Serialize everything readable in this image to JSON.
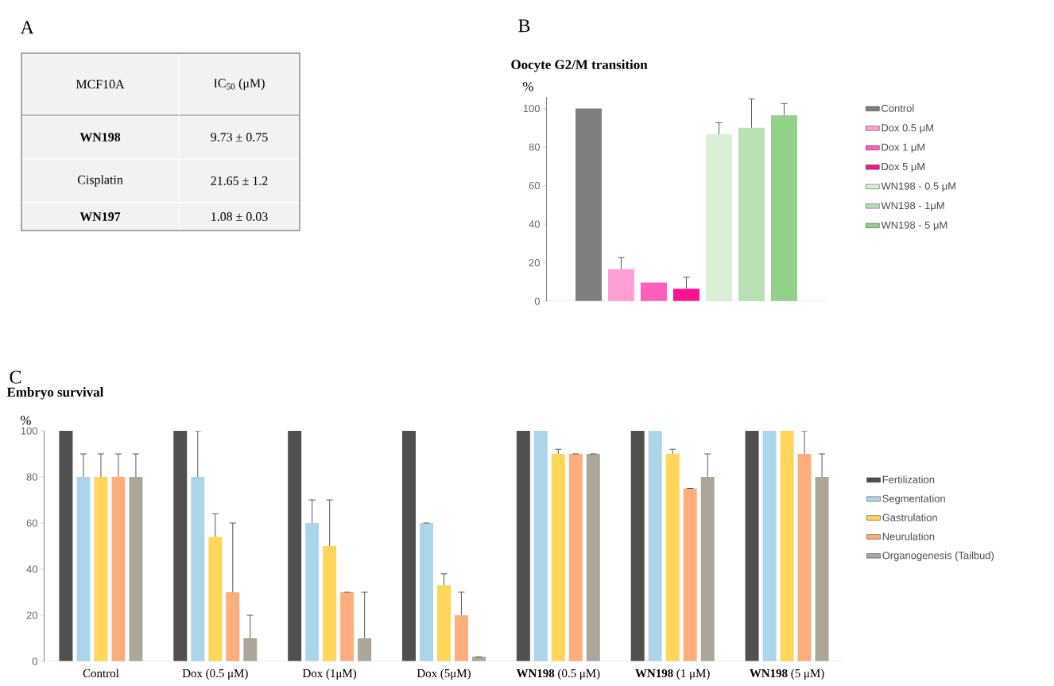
{
  "chart_data": [
    {
      "type": "other",
      "annotations": [
        "A",
        "MCF10A",
        "IC$_{50}$ (μM)",
        "**WN198**",
        "9.73 ± 0.75",
        "Cisplatin",
        "21.65 ± 1.2",
        "**WN197**",
        "1.08 ± 0.03"
      ]
    },
    {
      "type": "bar",
      "title": "Oocyte G2/M transition",
      "ylabel": "%",
      "annotations": [
        "B"
      ],
      "categories": [
        null
      ],
      "series": [
        {
          "name": "Control",
          "color": "#7f7f7f",
          "values": [
            100
          ],
          "errors": [
            null
          ]
        },
        {
          "name": "Dox 0.5 μM",
          "color": "#ff9fd6",
          "values": [
            16.7
          ],
          "errors": [
            6
          ]
        },
        {
          "name": "Dox 1 μM",
          "color": "#ff5ebc",
          "values": [
            9.7
          ],
          "errors": [
            null
          ]
        },
        {
          "name": "Dox 5 μM",
          "color": "#fc1190",
          "values": [
            6.5
          ],
          "errors": [
            6
          ]
        },
        {
          "name": "WN198 - 0.5 μM",
          "color": "#dbefd7",
          "values": [
            86.7
          ],
          "errors": [
            6
          ]
        },
        {
          "name": "WN198 - 1μM",
          "color": "#b9dfb5",
          "values": [
            90
          ],
          "errors": [
            15
          ]
        },
        {
          "name": "WN198 - 5 μM",
          "color": "#93d08a",
          "values": [
            96.5
          ],
          "errors": [
            6
          ]
        }
      ],
      "ylim": [
        0,
        106
      ],
      "yticks": [
        0,
        20,
        40,
        60,
        80,
        100
      ],
      "legend": "right",
      "tick_labels": "y"
    },
    {
      "type": "bar",
      "title": "Embryo survival",
      "ylabel": "%",
      "annotations": [
        "C"
      ],
      "categories": [
        "Control",
        "Dox (0.5 μM)",
        "Dox (1μM)",
        "Dox (5μM)",
        "**WN198** (0.5 μM)",
        "**WN198** (1 μM)",
        "**WN198** (5 μM)"
      ],
      "series": [
        {
          "name": "Fertilization",
          "color": "#505050",
          "values": [
            100,
            100,
            100,
            100,
            100,
            100,
            100
          ],
          "errors": [
            null,
            null,
            null,
            null,
            null,
            null,
            null
          ]
        },
        {
          "name": "Segmentation",
          "color": "#acd5ea",
          "values": [
            80,
            80,
            60,
            60,
            100,
            100,
            100
          ],
          "errors": [
            10,
            20,
            10,
            0,
            null,
            null,
            null
          ]
        },
        {
          "name": "Gastrulation",
          "color": "#ffd55a",
          "values": [
            80,
            54,
            50,
            33,
            90,
            90,
            100
          ],
          "errors": [
            10,
            10,
            20,
            5,
            2,
            2,
            null
          ]
        },
        {
          "name": "Neurulation",
          "color": "#ffad7f",
          "values": [
            80,
            30,
            30,
            20,
            90,
            75,
            90
          ],
          "errors": [
            10,
            30,
            0,
            10,
            0,
            0,
            10
          ]
        },
        {
          "name": "Organogenesis (Tailbud)",
          "color": "#aba59a",
          "values": [
            80,
            10,
            10,
            2,
            90,
            80,
            80
          ],
          "errors": [
            10,
            10,
            20,
            0,
            0,
            10,
            10
          ]
        }
      ],
      "ylim": [
        0,
        100
      ],
      "yticks": [
        0,
        20,
        40,
        60,
        80,
        100
      ],
      "legend": "right"
    }
  ]
}
